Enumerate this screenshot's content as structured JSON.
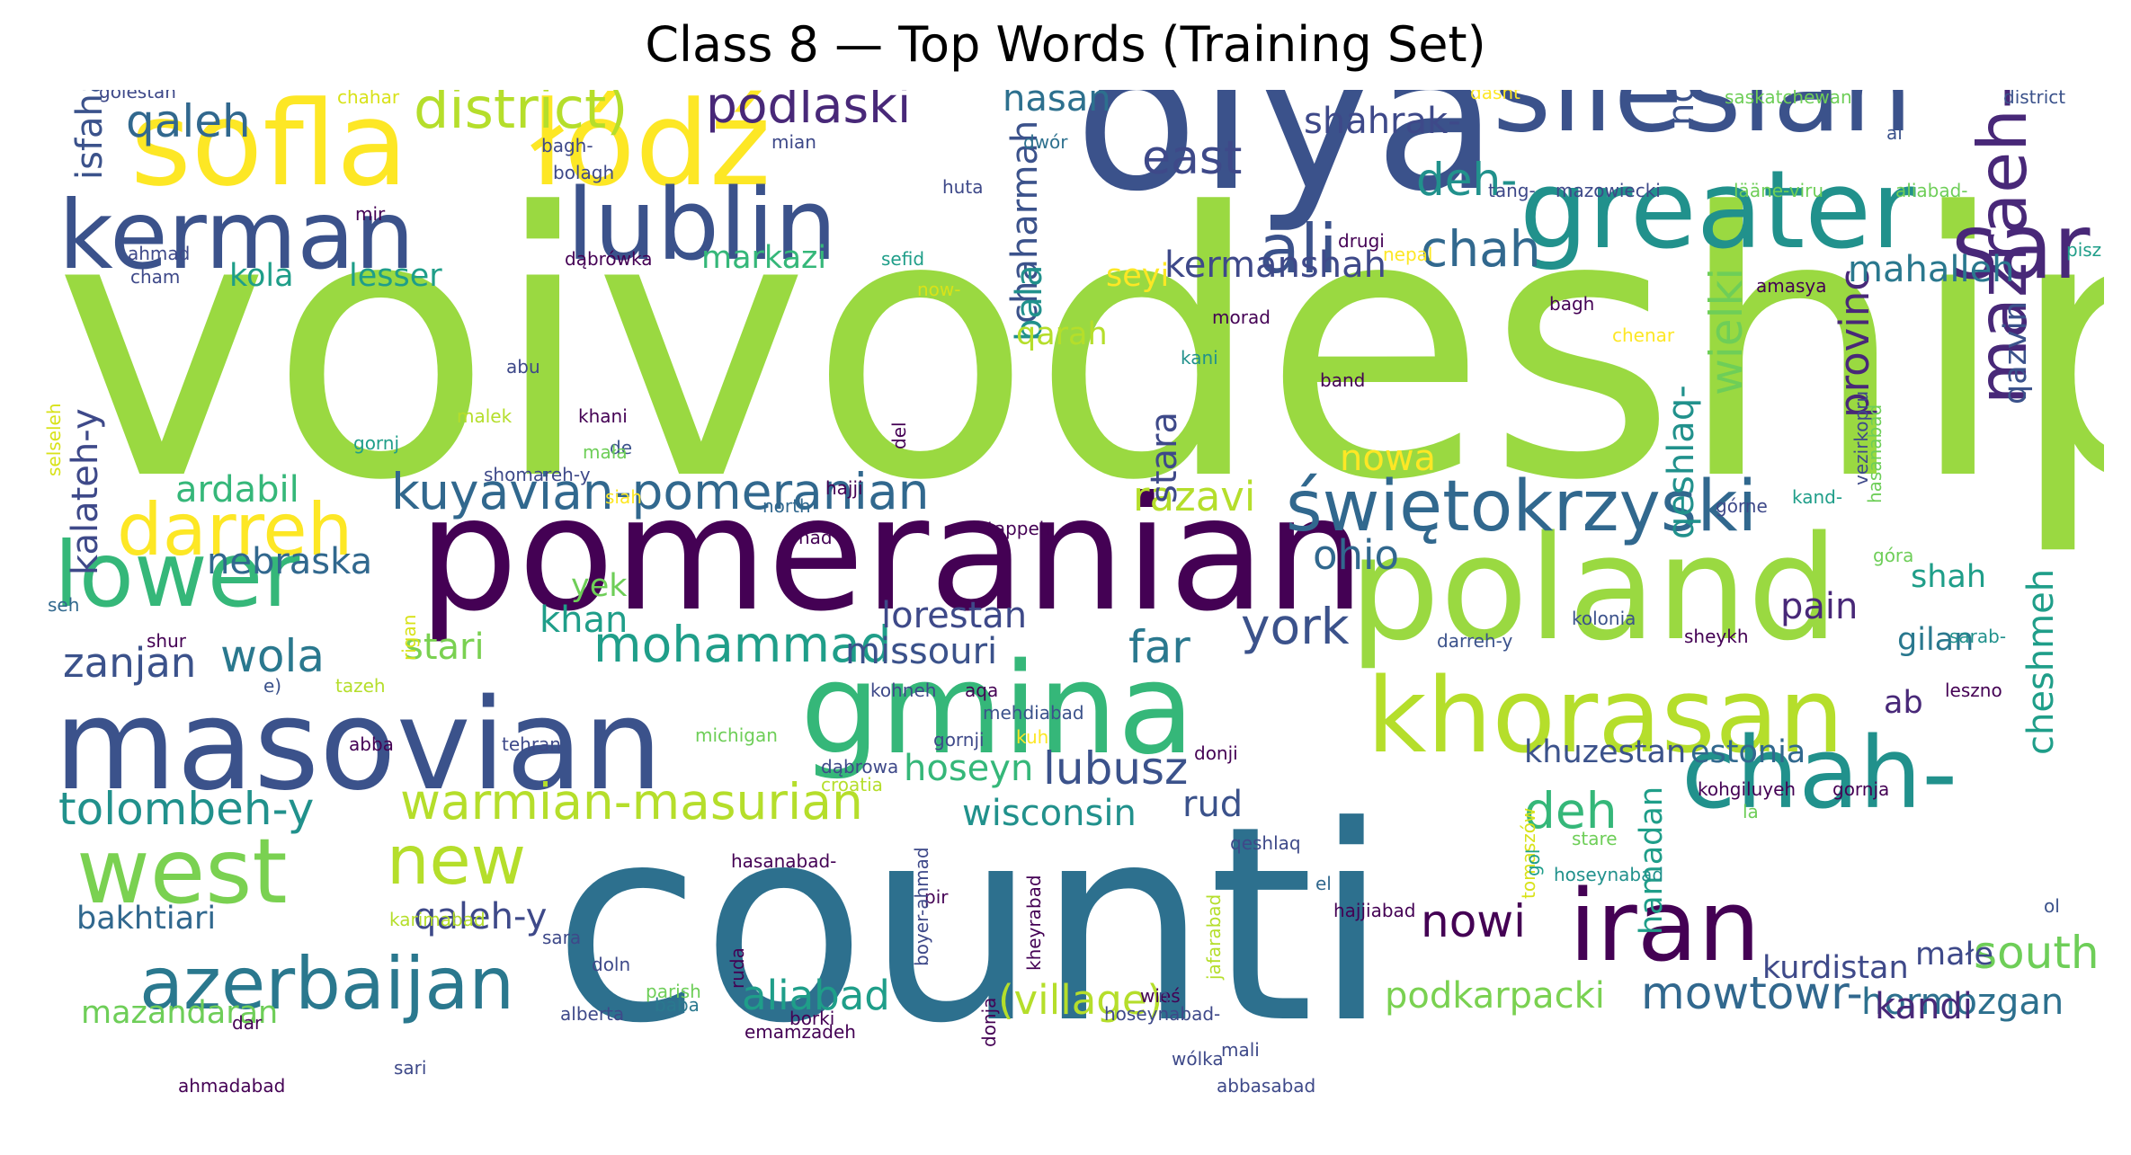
{
  "title": "Class 8 — Top Words (Training Set)",
  "words": [
    {
      "text": "voivodeship",
      "color": "#9ad941"
    },
    {
      "text": "counti",
      "color": "#2d708e"
    },
    {
      "text": "olya",
      "color": "#3b528b"
    },
    {
      "text": "pomeranian",
      "color": "#440154"
    },
    {
      "text": "poland",
      "color": "#9ad941"
    },
    {
      "text": "gmina",
      "color": "#35b779"
    },
    {
      "text": "masovian",
      "color": "#3b528b"
    },
    {
      "text": "silesian",
      "color": "#3b528b"
    },
    {
      "text": "sofla",
      "color": "#fde725"
    },
    {
      "text": "łódź",
      "color": "#fde725"
    },
    {
      "text": "greater",
      "color": "#21918c"
    },
    {
      "text": "kerman",
      "color": "#3b528b"
    },
    {
      "text": "lublin",
      "color": "#3b528b"
    },
    {
      "text": "khorasan",
      "color": "#b5de2b"
    },
    {
      "text": "iran",
      "color": "#440154"
    },
    {
      "text": "chah-",
      "color": "#21918c"
    },
    {
      "text": "west",
      "color": "#7ad151"
    },
    {
      "text": "lower",
      "color": "#35b779"
    },
    {
      "text": "sar",
      "color": "#482878"
    },
    {
      "text": "azerbaijan",
      "color": "#2a788e"
    },
    {
      "text": "mazraeh-y",
      "color": "#482878"
    },
    {
      "text": "świętokrzyski",
      "color": "#31688e"
    },
    {
      "text": "kuyavian-pomeranian",
      "color": "#31688e"
    },
    {
      "text": "darreh",
      "color": "#fde725"
    },
    {
      "text": "new",
      "color": "#b5de2b"
    },
    {
      "text": "ali",
      "color": "#3b528b"
    },
    {
      "text": "district)",
      "color": "#b5de2b"
    },
    {
      "text": "podlaski",
      "color": "#482878"
    },
    {
      "text": "qaleh",
      "color": "#31688e"
    },
    {
      "text": "warmian-masurian",
      "color": "#b5de2b"
    },
    {
      "text": "tolombeh-y",
      "color": "#21918c"
    },
    {
      "text": "mohammad",
      "color": "#1f9e89"
    },
    {
      "text": "york",
      "color": "#3b528b"
    },
    {
      "text": "chah",
      "color": "#31688e"
    },
    {
      "text": "east",
      "color": "#3e4989"
    },
    {
      "text": "deh-",
      "color": "#21918c"
    },
    {
      "text": "deh",
      "color": "#35b779"
    },
    {
      "text": "wielki",
      "color": "#6ece58"
    },
    {
      "text": "provinc",
      "color": "#482878"
    },
    {
      "text": "lubusz",
      "color": "#3b528b"
    },
    {
      "text": "south",
      "color": "#6ece58"
    },
    {
      "text": "nowi",
      "color": "#440154"
    },
    {
      "text": "mowtowr-",
      "color": "#31688e"
    },
    {
      "text": "aliabad",
      "color": "#1f9e89"
    },
    {
      "text": "(village)",
      "color": "#b5de2b"
    },
    {
      "text": "podkarpacki",
      "color": "#7ad151"
    },
    {
      "text": "hormozgan",
      "color": "#2d708e"
    },
    {
      "text": "qaleh-y",
      "color": "#3e4989"
    },
    {
      "text": "wisconsin",
      "color": "#21918c"
    },
    {
      "text": "rud",
      "color": "#3b528b"
    },
    {
      "text": "hoseyn",
      "color": "#35b779"
    },
    {
      "text": "far",
      "color": "#2a788e"
    },
    {
      "text": "missouri",
      "color": "#3b528b"
    },
    {
      "text": "lorestan",
      "color": "#3e4989"
    },
    {
      "text": "wola",
      "color": "#2a788e"
    },
    {
      "text": "zanjan",
      "color": "#3b528b"
    },
    {
      "text": "stari",
      "color": "#7ad151"
    },
    {
      "text": "khan",
      "color": "#1f9e89"
    },
    {
      "text": "ohio",
      "color": "#31688e"
    },
    {
      "text": "razavi",
      "color": "#b5de2b"
    },
    {
      "text": "nebraska",
      "color": "#31688e"
    },
    {
      "text": "ardabil",
      "color": "#35b779"
    },
    {
      "text": "kalateh-y",
      "color": "#3e4989"
    },
    {
      "text": "isfahan",
      "color": "#3b528b"
    },
    {
      "text": "hasan",
      "color": "#2d708e"
    },
    {
      "text": "shahrak-",
      "color": "#3e4989"
    },
    {
      "text": "now",
      "color": "#3b528b"
    },
    {
      "text": "kermanshah",
      "color": "#3e4989"
    },
    {
      "text": "chaharmah",
      "color": "#3b528b"
    },
    {
      "text": "bala",
      "color": "#21918c"
    },
    {
      "text": "seyi",
      "color": "#fde725"
    },
    {
      "text": "qarah",
      "color": "#b5de2b"
    },
    {
      "text": "stara",
      "color": "#3e4989"
    },
    {
      "text": "nowa",
      "color": "#fde725"
    },
    {
      "text": "qeshlaq-",
      "color": "#21918c"
    },
    {
      "text": "qazvin",
      "color": "#3b528b"
    },
    {
      "text": "mahalleh",
      "color": "#2a788e"
    },
    {
      "text": "pain",
      "color": "#482878"
    },
    {
      "text": "shah",
      "color": "#1f9e89"
    },
    {
      "text": "gilan",
      "color": "#2a788e"
    },
    {
      "text": "ab",
      "color": "#482878"
    },
    {
      "text": "cheshmeh",
      "color": "#1f9e89"
    },
    {
      "text": "khuzestan",
      "color": "#3b528b"
    },
    {
      "text": "estonia",
      "color": "#31688e"
    },
    {
      "text": "kandi",
      "color": "#482878"
    },
    {
      "text": "małe",
      "color": "#3e4989"
    },
    {
      "text": "kurdistan",
      "color": "#3e4989"
    },
    {
      "text": "hamadan",
      "color": "#1f9e89"
    },
    {
      "text": "bakhtiari",
      "color": "#31688e"
    },
    {
      "text": "mazandaran",
      "color": "#6ece58"
    },
    {
      "text": "yek",
      "color": "#6ece58"
    },
    {
      "text": "kola",
      "color": "#1f9e89"
    },
    {
      "text": "lesser",
      "color": "#1f9e89"
    },
    {
      "text": "markazi",
      "color": "#35b779"
    },
    {
      "text": "golestan",
      "color": "#3e4989"
    },
    {
      "text": "chahar",
      "color": "#d8e219"
    },
    {
      "text": "mian",
      "color": "#3e4989"
    },
    {
      "text": "bagh-",
      "color": "#3e4989"
    },
    {
      "text": "bolagh",
      "color": "#3e4989"
    },
    {
      "text": "huta",
      "color": "#3e4989"
    },
    {
      "text": "mir",
      "color": "#440154"
    },
    {
      "text": "ahmad",
      "color": "#3e4989"
    },
    {
      "text": "cham",
      "color": "#3e4989"
    },
    {
      "text": "dąbrówka",
      "color": "#440154"
    },
    {
      "text": "sefid",
      "color": "#1f9e89"
    },
    {
      "text": "now-",
      "color": "#d8e219"
    },
    {
      "text": "dwór",
      "color": "#2d708e"
    },
    {
      "text": "dasht",
      "color": "#fde725"
    },
    {
      "text": "saskatchewan",
      "color": "#6ece58"
    },
    {
      "text": "district",
      "color": "#3b528b"
    },
    {
      "text": "al",
      "color": "#3b528b"
    },
    {
      "text": "mazowiecki",
      "color": "#3e4989"
    },
    {
      "text": "lääne-viru",
      "color": "#6ece58"
    },
    {
      "text": "tang-",
      "color": "#3e4989"
    },
    {
      "text": "aliabad-",
      "color": "#6ece58"
    },
    {
      "text": "drugi",
      "color": "#440154"
    },
    {
      "text": "nepal",
      "color": "#fde725"
    },
    {
      "text": "bagh",
      "color": "#440154"
    },
    {
      "text": "amasya",
      "color": "#440154"
    },
    {
      "text": "pisz",
      "color": "#1f9e89"
    },
    {
      "text": "chenar",
      "color": "#fde725"
    },
    {
      "text": "morad",
      "color": "#440154"
    },
    {
      "text": "kani",
      "color": "#21918c"
    },
    {
      "text": "band",
      "color": "#440154"
    },
    {
      "text": "abu",
      "color": "#3e4989"
    },
    {
      "text": "selseleh",
      "color": "#d8e219"
    },
    {
      "text": "malek",
      "color": "#b5de2b"
    },
    {
      "text": "gornj",
      "color": "#1f9e89"
    },
    {
      "text": "khani",
      "color": "#440154"
    },
    {
      "text": "de",
      "color": "#3b528b"
    },
    {
      "text": "shomareh-y",
      "color": "#3e4989"
    },
    {
      "text": "mała",
      "color": "#6ece58"
    },
    {
      "text": "siah",
      "color": "#fde725"
    },
    {
      "text": "hajji",
      "color": "#440154"
    },
    {
      "text": "north",
      "color": "#31688e"
    },
    {
      "text": "nad",
      "color": "#440154"
    },
    {
      "text": "tappeh",
      "color": "#440154"
    },
    {
      "text": "del",
      "color": "#440154"
    },
    {
      "text": "hasanabad",
      "color": "#6ece58"
    },
    {
      "text": "kand-",
      "color": "#1f9e89"
    },
    {
      "text": "vezirkopru",
      "color": "#3e4989"
    },
    {
      "text": "górne",
      "color": "#3e4989"
    },
    {
      "text": "góra",
      "color": "#6ece58"
    },
    {
      "text": "seh",
      "color": "#31688e"
    },
    {
      "text": "shur",
      "color": "#440154"
    },
    {
      "text": "darreh-y",
      "color": "#3b528b"
    },
    {
      "text": "kolonia",
      "color": "#3b528b"
    },
    {
      "text": "sheykh",
      "color": "#440154"
    },
    {
      "text": "sarab-",
      "color": "#21918c"
    },
    {
      "text": "rigan",
      "color": "#d8e219"
    },
    {
      "text": "e)",
      "color": "#3b528b"
    },
    {
      "text": "tazeh",
      "color": "#b5de2b"
    },
    {
      "text": "kohneh",
      "color": "#3e4989"
    },
    {
      "text": "aqa",
      "color": "#440154"
    },
    {
      "text": "mehdiabad",
      "color": "#3b528b"
    },
    {
      "text": "kuh",
      "color": "#fde725"
    },
    {
      "text": "leszno",
      "color": "#440154"
    },
    {
      "text": "donji",
      "color": "#440154"
    },
    {
      "text": "dąbrowa",
      "color": "#3e4989"
    },
    {
      "text": "michigan",
      "color": "#6ece58"
    },
    {
      "text": "abba",
      "color": "#440154"
    },
    {
      "text": "tehran",
      "color": "#3e4989"
    },
    {
      "text": "gornji",
      "color": "#3e4989"
    },
    {
      "text": "croatia",
      "color": "#b5de2b"
    },
    {
      "text": "hasanabad-",
      "color": "#440154"
    },
    {
      "text": "qeshlaq",
      "color": "#3e4989"
    },
    {
      "text": "stare",
      "color": "#6ece58"
    },
    {
      "text": "hoseynabad",
      "color": "#21918c"
    },
    {
      "text": "kohgiluyeh",
      "color": "#440154"
    },
    {
      "text": "la",
      "color": "#6ece58"
    },
    {
      "text": "gornja",
      "color": "#440154"
    },
    {
      "text": "karimabad",
      "color": "#b5de2b"
    },
    {
      "text": "sara",
      "color": "#3e4989"
    },
    {
      "text": "doln",
      "color": "#3e4989"
    },
    {
      "text": "tomaszów",
      "color": "#d8e219"
    },
    {
      "text": "ol",
      "color": "#3b528b"
    },
    {
      "text": "el",
      "color": "#31688e"
    },
    {
      "text": "hajjiabad",
      "color": "#440154"
    },
    {
      "text": "pir",
      "color": "#440154"
    },
    {
      "text": "gol",
      "color": "#1f9e89"
    },
    {
      "text": "parish",
      "color": "#6ece58"
    },
    {
      "text": "baba",
      "color": "#2a788e"
    },
    {
      "text": "borki",
      "color": "#440154"
    },
    {
      "text": "ruda",
      "color": "#440154"
    },
    {
      "text": "boyer-ahmad",
      "color": "#3e4989"
    },
    {
      "text": "kheyrabad",
      "color": "#440154"
    },
    {
      "text": "jafarabad",
      "color": "#b5de2b"
    },
    {
      "text": "hoseynabad-",
      "color": "#3e4989"
    },
    {
      "text": "wieś",
      "color": "#440154"
    },
    {
      "text": "n",
      "color": "#3b528b"
    },
    {
      "text": "mali",
      "color": "#3e4989"
    },
    {
      "text": "alberta",
      "color": "#3e4989"
    },
    {
      "text": "donja",
      "color": "#440154"
    },
    {
      "text": "wólka",
      "color": "#3e4989"
    },
    {
      "text": "abbasabad",
      "color": "#3e4989"
    },
    {
      "text": "dar",
      "color": "#440154"
    },
    {
      "text": "ahmadabad",
      "color": "#440154"
    },
    {
      "text": "emamzadeh",
      "color": "#440154"
    },
    {
      "text": "sari",
      "color": "#3e4989"
    }
  ]
}
